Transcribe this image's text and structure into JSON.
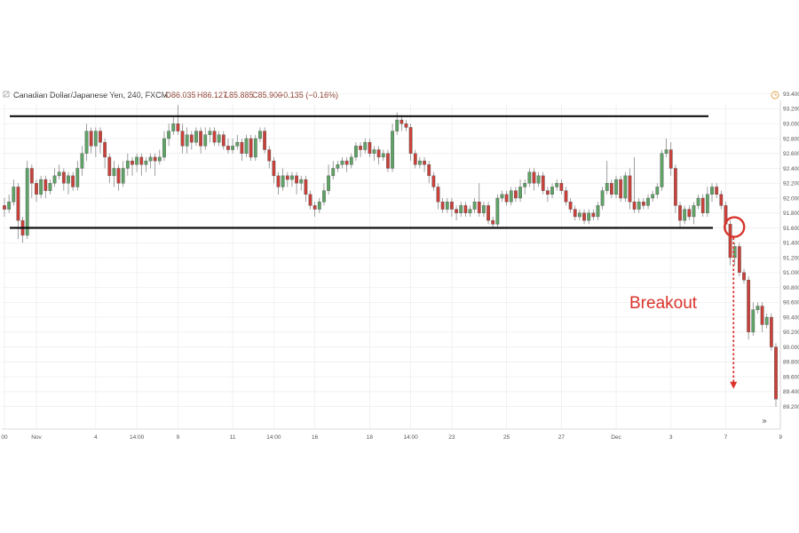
{
  "header": {
    "symbol": "Canadian Dollar/Japanese Yen, 240, FXCM",
    "open": "O86.035",
    "high": "H86.127",
    "low": "L85.885",
    "close": "C85.900",
    "change": "−0.135 (−0.16%)"
  },
  "chart_data": {
    "type": "candlestick",
    "title": "",
    "xlabel": "",
    "ylabel": "",
    "ylim": [
      89.1,
      93.25
    ],
    "y_ticks": [
      "93.400",
      "93.200",
      "93.000",
      "92.800",
      "92.600",
      "92.400",
      "92.200",
      "92.000",
      "91.800",
      "91.600",
      "91.400",
      "91.200",
      "91.000",
      "90.800",
      "90.600",
      "90.400",
      "90.200",
      "90.000",
      "89.800",
      "89.600",
      "89.400",
      "89.200"
    ],
    "x_ticks": [
      {
        "label": "00",
        "i": 0
      },
      {
        "label": "Nov",
        "i": 7
      },
      {
        "label": "4",
        "i": 20
      },
      {
        "label": "14:00",
        "i": 29
      },
      {
        "label": "9",
        "i": 38
      },
      {
        "label": "11",
        "i": 50
      },
      {
        "label": "14:00",
        "i": 59
      },
      {
        "label": "16",
        "i": 68
      },
      {
        "label": "18",
        "i": 80
      },
      {
        "label": "14:00",
        "i": 89
      },
      {
        "label": "23",
        "i": 98
      },
      {
        "label": "25",
        "i": 110
      },
      {
        "label": "27",
        "i": 122
      },
      {
        "label": "Dec",
        "i": 134
      },
      {
        "label": "3",
        "i": 146
      },
      {
        "label": "7",
        "i": 158
      },
      {
        "label": "9",
        "i": 170
      }
    ],
    "resistance": 93.1,
    "support": 91.6,
    "breakout_target": 89.45,
    "breakout_index": 160,
    "annotation": "Breakout",
    "candles": [
      [
        91.9,
        91.85,
        92.0,
        91.75
      ],
      [
        91.85,
        91.95,
        92.05,
        91.8
      ],
      [
        91.95,
        92.15,
        92.25,
        91.9
      ],
      [
        92.15,
        91.7,
        92.2,
        91.45
      ],
      [
        91.7,
        91.5,
        91.75,
        91.4
      ],
      [
        91.5,
        92.4,
        92.5,
        91.45
      ],
      [
        92.4,
        92.2,
        92.45,
        92.0
      ],
      [
        92.2,
        92.05,
        92.25,
        91.95
      ],
      [
        92.05,
        92.25,
        92.3,
        92.0
      ],
      [
        92.25,
        92.1,
        92.3,
        92.0
      ],
      [
        92.1,
        92.2,
        92.25,
        92.05
      ],
      [
        92.2,
        92.3,
        92.4,
        92.15
      ],
      [
        92.3,
        92.35,
        92.45,
        92.25
      ],
      [
        92.35,
        92.2,
        92.4,
        92.1
      ],
      [
        92.2,
        92.3,
        92.35,
        92.05
      ],
      [
        92.3,
        92.15,
        92.35,
        92.1
      ],
      [
        92.15,
        92.4,
        92.5,
        92.1
      ],
      [
        92.4,
        92.6,
        92.7,
        92.3
      ],
      [
        92.6,
        92.9,
        93.0,
        92.5
      ],
      [
        92.9,
        92.7,
        92.95,
        92.6
      ],
      [
        92.7,
        92.9,
        92.95,
        92.55
      ],
      [
        92.9,
        92.75,
        92.95,
        92.6
      ],
      [
        92.75,
        92.55,
        92.8,
        92.4
      ],
      [
        92.55,
        92.3,
        92.6,
        92.2
      ],
      [
        92.3,
        92.4,
        92.5,
        92.15
      ],
      [
        92.4,
        92.2,
        92.45,
        92.1
      ],
      [
        92.2,
        92.4,
        92.5,
        92.15
      ],
      [
        92.4,
        92.5,
        92.6,
        92.3
      ],
      [
        92.5,
        92.45,
        92.55,
        92.3
      ],
      [
        92.45,
        92.55,
        92.6,
        92.35
      ],
      [
        92.55,
        92.45,
        92.6,
        92.3
      ],
      [
        92.45,
        92.5,
        92.55,
        92.35
      ],
      [
        92.5,
        92.55,
        92.6,
        92.4
      ],
      [
        92.55,
        92.5,
        92.6,
        92.3
      ],
      [
        92.5,
        92.55,
        92.65,
        92.45
      ],
      [
        92.55,
        92.8,
        92.9,
        92.5
      ],
      [
        92.8,
        92.9,
        93.0,
        92.7
      ],
      [
        92.9,
        93.0,
        93.1,
        92.85
      ],
      [
        93.0,
        92.9,
        93.25,
        92.85
      ],
      [
        92.9,
        92.7,
        93.0,
        92.6
      ],
      [
        92.7,
        92.85,
        92.95,
        92.6
      ],
      [
        92.85,
        92.75,
        92.9,
        92.65
      ],
      [
        92.75,
        92.9,
        92.95,
        92.7
      ],
      [
        92.9,
        92.7,
        92.95,
        92.6
      ],
      [
        92.7,
        92.85,
        92.95,
        92.65
      ],
      [
        92.85,
        92.9,
        92.95,
        92.75
      ],
      [
        92.9,
        92.75,
        92.95,
        92.7
      ],
      [
        92.75,
        92.85,
        92.9,
        92.7
      ],
      [
        92.85,
        92.7,
        92.9,
        92.65
      ],
      [
        92.7,
        92.65,
        92.8,
        92.6
      ],
      [
        92.65,
        92.7,
        92.8,
        92.6
      ],
      [
        92.7,
        92.75,
        92.85,
        92.65
      ],
      [
        92.75,
        92.6,
        92.8,
        92.5
      ],
      [
        92.6,
        92.8,
        92.85,
        92.55
      ],
      [
        92.8,
        92.55,
        92.85,
        92.5
      ],
      [
        92.55,
        92.8,
        92.85,
        92.5
      ],
      [
        92.8,
        92.9,
        92.95,
        92.75
      ],
      [
        92.9,
        92.65,
        92.95,
        92.6
      ],
      [
        92.65,
        92.5,
        92.7,
        92.4
      ],
      [
        92.5,
        92.3,
        92.55,
        92.2
      ],
      [
        92.3,
        92.15,
        92.35,
        92.05
      ],
      [
        92.15,
        92.3,
        92.4,
        92.1
      ],
      [
        92.3,
        92.25,
        92.35,
        92.15
      ],
      [
        92.25,
        92.3,
        92.35,
        92.15
      ],
      [
        92.3,
        92.2,
        92.35,
        92.05
      ],
      [
        92.2,
        92.25,
        92.3,
        92.1
      ],
      [
        92.25,
        92.05,
        92.3,
        91.95
      ],
      [
        92.05,
        91.9,
        92.1,
        91.85
      ],
      [
        91.9,
        91.85,
        91.95,
        91.75
      ],
      [
        91.85,
        91.95,
        92.0,
        91.8
      ],
      [
        91.95,
        92.1,
        92.2,
        91.9
      ],
      [
        92.1,
        92.3,
        92.45,
        92.05
      ],
      [
        92.3,
        92.4,
        92.5,
        92.25
      ],
      [
        92.4,
        92.45,
        92.5,
        92.35
      ],
      [
        92.45,
        92.5,
        92.55,
        92.4
      ],
      [
        92.5,
        92.45,
        92.55,
        92.35
      ],
      [
        92.45,
        92.55,
        92.6,
        92.4
      ],
      [
        92.55,
        92.7,
        92.75,
        92.5
      ],
      [
        92.7,
        92.65,
        92.75,
        92.55
      ],
      [
        92.65,
        92.75,
        92.8,
        92.6
      ],
      [
        92.75,
        92.6,
        92.8,
        92.55
      ],
      [
        92.6,
        92.65,
        92.7,
        92.5
      ],
      [
        92.65,
        92.55,
        92.7,
        92.45
      ],
      [
        92.55,
        92.6,
        92.65,
        92.5
      ],
      [
        92.6,
        92.4,
        92.65,
        92.35
      ],
      [
        92.4,
        92.9,
        93.0,
        92.35
      ],
      [
        92.9,
        93.05,
        93.15,
        92.85
      ],
      [
        93.05,
        93.0,
        93.1,
        92.9
      ],
      [
        93.0,
        92.95,
        93.05,
        92.9
      ],
      [
        92.95,
        92.6,
        93.0,
        92.5
      ],
      [
        92.6,
        92.45,
        92.65,
        92.4
      ],
      [
        92.45,
        92.5,
        92.55,
        92.4
      ],
      [
        92.5,
        92.45,
        92.55,
        92.35
      ],
      [
        92.45,
        92.3,
        92.5,
        92.2
      ],
      [
        92.3,
        92.15,
        92.35,
        92.1
      ],
      [
        92.15,
        91.95,
        92.2,
        91.85
      ],
      [
        91.95,
        91.85,
        92.0,
        91.8
      ],
      [
        91.85,
        91.95,
        92.0,
        91.8
      ],
      [
        91.95,
        91.85,
        92.0,
        91.75
      ],
      [
        91.85,
        91.8,
        91.9,
        91.7
      ],
      [
        91.8,
        91.9,
        91.95,
        91.75
      ],
      [
        91.9,
        91.8,
        91.95,
        91.75
      ],
      [
        91.8,
        91.85,
        91.9,
        91.75
      ],
      [
        91.85,
        91.95,
        92.0,
        91.8
      ],
      [
        91.95,
        91.8,
        92.2,
        91.75
      ],
      [
        91.8,
        91.9,
        91.95,
        91.75
      ],
      [
        91.9,
        91.7,
        91.95,
        91.65
      ],
      [
        91.7,
        91.65,
        91.75,
        91.6
      ],
      [
        91.65,
        92.0,
        92.05,
        91.6
      ],
      [
        92.0,
        92.05,
        92.1,
        91.95
      ],
      [
        92.05,
        91.95,
        92.1,
        91.9
      ],
      [
        91.95,
        92.1,
        92.15,
        91.9
      ],
      [
        92.1,
        92.0,
        92.15,
        91.95
      ],
      [
        92.0,
        92.15,
        92.25,
        91.95
      ],
      [
        92.15,
        92.2,
        92.25,
        92.05
      ],
      [
        92.2,
        92.35,
        92.4,
        92.15
      ],
      [
        92.35,
        92.2,
        92.4,
        92.1
      ],
      [
        92.2,
        92.3,
        92.35,
        92.15
      ],
      [
        92.3,
        92.1,
        92.35,
        92.05
      ],
      [
        92.1,
        92.05,
        92.15,
        91.95
      ],
      [
        92.05,
        92.15,
        92.2,
        92.0
      ],
      [
        92.15,
        92.2,
        92.25,
        92.1
      ],
      [
        92.2,
        92.1,
        92.25,
        92.05
      ],
      [
        92.1,
        91.95,
        92.15,
        91.9
      ],
      [
        91.95,
        91.85,
        92.0,
        91.8
      ],
      [
        91.85,
        91.75,
        91.9,
        91.7
      ],
      [
        91.75,
        91.8,
        91.85,
        91.7
      ],
      [
        91.8,
        91.7,
        91.85,
        91.65
      ],
      [
        91.7,
        91.8,
        91.85,
        91.65
      ],
      [
        91.8,
        91.75,
        91.85,
        91.7
      ],
      [
        91.75,
        91.9,
        91.95,
        91.7
      ],
      [
        91.9,
        92.1,
        92.15,
        91.85
      ],
      [
        92.1,
        92.2,
        92.5,
        92.05
      ],
      [
        92.2,
        92.05,
        92.25,
        92.0
      ],
      [
        92.05,
        92.25,
        92.3,
        92.0
      ],
      [
        92.25,
        92.0,
        92.3,
        91.95
      ],
      [
        92.0,
        92.3,
        92.35,
        91.95
      ],
      [
        92.3,
        91.95,
        92.4,
        91.85
      ],
      [
        91.95,
        91.85,
        92.55,
        91.8
      ],
      [
        91.85,
        91.95,
        92.0,
        91.8
      ],
      [
        91.95,
        91.9,
        92.0,
        91.85
      ],
      [
        91.9,
        92.0,
        92.05,
        91.85
      ],
      [
        92.0,
        92.05,
        92.1,
        91.95
      ],
      [
        92.05,
        92.15,
        92.2,
        92.0
      ],
      [
        92.15,
        92.6,
        92.65,
        92.1
      ],
      [
        92.6,
        92.65,
        92.8,
        92.55
      ],
      [
        92.65,
        92.4,
        92.75,
        92.3
      ],
      [
        92.4,
        91.9,
        92.45,
        91.8
      ],
      [
        91.9,
        91.7,
        91.95,
        91.6
      ],
      [
        91.7,
        91.85,
        91.9,
        91.65
      ],
      [
        91.85,
        91.75,
        91.9,
        91.7
      ],
      [
        91.75,
        91.9,
        91.95,
        91.65
      ],
      [
        91.9,
        92.0,
        92.05,
        91.85
      ],
      [
        92.0,
        91.8,
        92.05,
        91.75
      ],
      [
        91.8,
        92.05,
        92.15,
        91.75
      ],
      [
        92.05,
        92.15,
        92.2,
        91.95
      ],
      [
        92.15,
        92.05,
        92.2,
        92.0
      ],
      [
        92.05,
        91.9,
        92.1,
        91.85
      ],
      [
        91.9,
        91.65,
        91.95,
        91.55
      ],
      [
        91.65,
        91.2,
        91.7,
        91.1
      ],
      [
        91.2,
        91.35,
        91.4,
        91.1
      ],
      [
        91.35,
        91.0,
        91.4,
        90.95
      ],
      [
        91.0,
        90.9,
        91.05,
        90.85
      ],
      [
        90.9,
        90.2,
        90.95,
        90.1
      ],
      [
        90.2,
        90.5,
        90.6,
        90.15
      ],
      [
        90.5,
        90.55,
        90.6,
        90.45
      ],
      [
        90.55,
        90.3,
        90.6,
        90.2
      ],
      [
        90.3,
        90.4,
        90.45,
        90.25
      ],
      [
        90.4,
        90.0,
        90.45,
        89.95
      ],
      [
        90.0,
        89.3,
        90.05,
        89.2
      ]
    ]
  }
}
